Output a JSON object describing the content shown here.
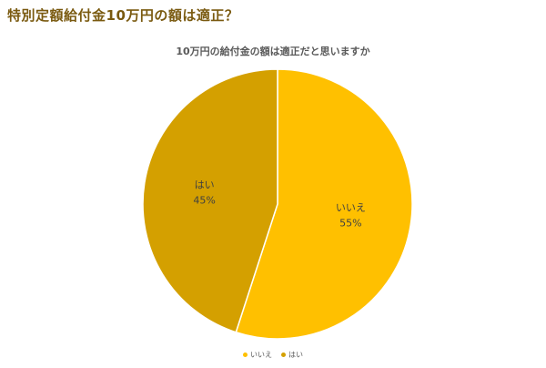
{
  "page": {
    "heading": "特別定額給付金10万円の額は適正？"
  },
  "chart_data": {
    "type": "pie",
    "title": "10万円の給付金の額は適正だと思いますか",
    "slices": [
      {
        "label": "いいえ",
        "value": 55,
        "display": "55%",
        "color": "#ffc000"
      },
      {
        "label": "はい",
        "value": 45,
        "display": "45%",
        "color": "#d4a000"
      }
    ],
    "legend": {
      "placement": "bottom",
      "entries": [
        "いいえ",
        "はい"
      ]
    }
  }
}
